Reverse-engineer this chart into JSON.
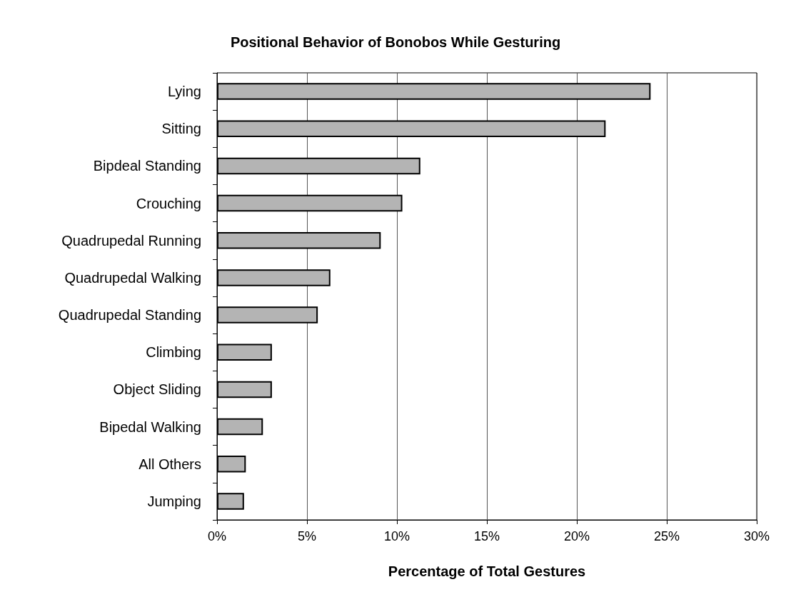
{
  "chart_data": {
    "type": "bar",
    "orientation": "horizontal",
    "title": "Positional Behavior of Bonobos While Gesturing",
    "xlabel": "Percentage of Total Gestures",
    "categories": [
      "Lying",
      "Sitting",
      "Bipdeal Standing",
      "Crouching",
      "Quadrupedal Running",
      "Quadrupedal Walking",
      "Quadrupedal Standing",
      "Climbing",
      "Object Sliding",
      "Bipedal Walking",
      "All Others",
      "Jumping"
    ],
    "values": [
      24.1,
      21.6,
      11.3,
      10.3,
      9.1,
      6.3,
      5.6,
      3.05,
      3.05,
      2.55,
      1.6,
      1.5
    ],
    "color": "#b4b4b4",
    "xlim": [
      0,
      30
    ],
    "xticks": [
      {
        "value": 0,
        "label": "0%"
      },
      {
        "value": 5,
        "label": "5%"
      },
      {
        "value": 10,
        "label": "10%"
      },
      {
        "value": 15,
        "label": "15%"
      },
      {
        "value": 20,
        "label": "20%"
      },
      {
        "value": 25,
        "label": "25%"
      },
      {
        "value": 30,
        "label": "30%"
      }
    ],
    "grid": "x"
  }
}
